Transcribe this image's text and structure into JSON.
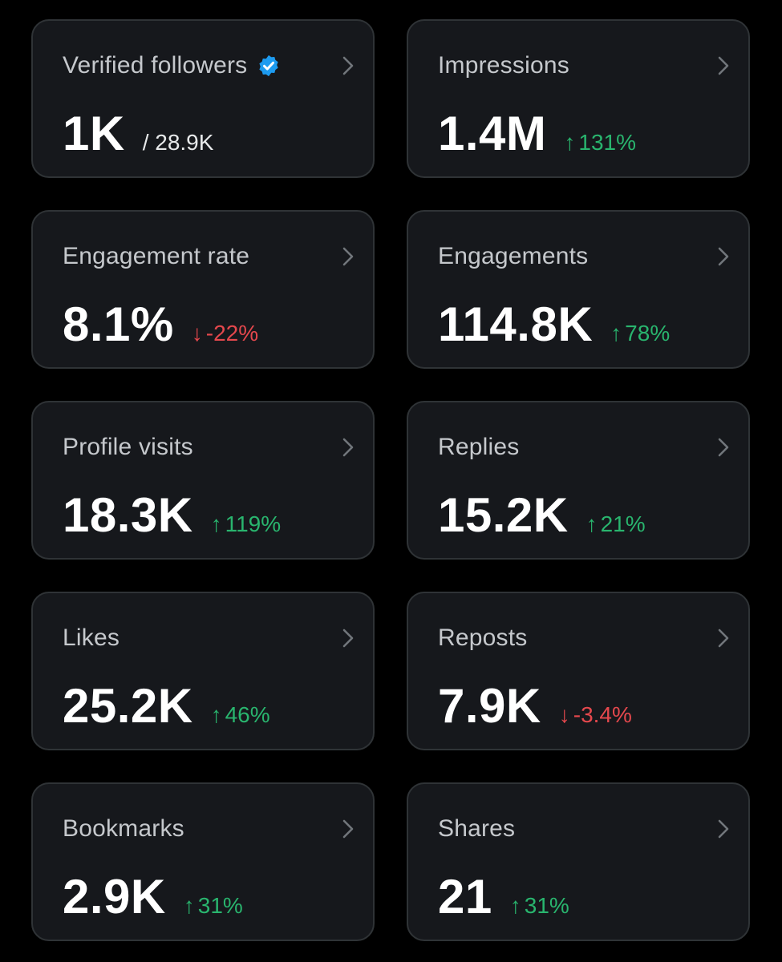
{
  "colors": {
    "background": "#000000",
    "card": "#16181c",
    "positive": "#29b56e",
    "negative": "#e5484d",
    "verified": "#1d9bf0"
  },
  "icons": {
    "verified": "verified-badge-icon",
    "chevron": "chevron-right-icon",
    "up": "arrow-up-icon",
    "down": "arrow-down-icon"
  },
  "cards": [
    {
      "title": "Verified followers",
      "value": "1K",
      "total": "/ 28.9K"
    },
    {
      "title": "Impressions",
      "value": "1.4M",
      "delta": "131%",
      "arrow": "↑"
    },
    {
      "title": "Engagement rate",
      "value": "8.1%",
      "delta": "-22%",
      "arrow": "↓"
    },
    {
      "title": "Engagements",
      "value": "114.8K",
      "delta": "78%",
      "arrow": "↑"
    },
    {
      "title": "Profile visits",
      "value": "18.3K",
      "delta": "119%",
      "arrow": "↑"
    },
    {
      "title": "Replies",
      "value": "15.2K",
      "delta": "21%",
      "arrow": "↑"
    },
    {
      "title": "Likes",
      "value": "25.2K",
      "delta": "46%",
      "arrow": "↑"
    },
    {
      "title": "Reposts",
      "value": "7.9K",
      "delta": "-3.4%",
      "arrow": "↓"
    },
    {
      "title": "Bookmarks",
      "value": "2.9K",
      "delta": "31%",
      "arrow": "↑"
    },
    {
      "title": "Shares",
      "value": "21",
      "delta": "31%",
      "arrow": "↑"
    }
  ]
}
